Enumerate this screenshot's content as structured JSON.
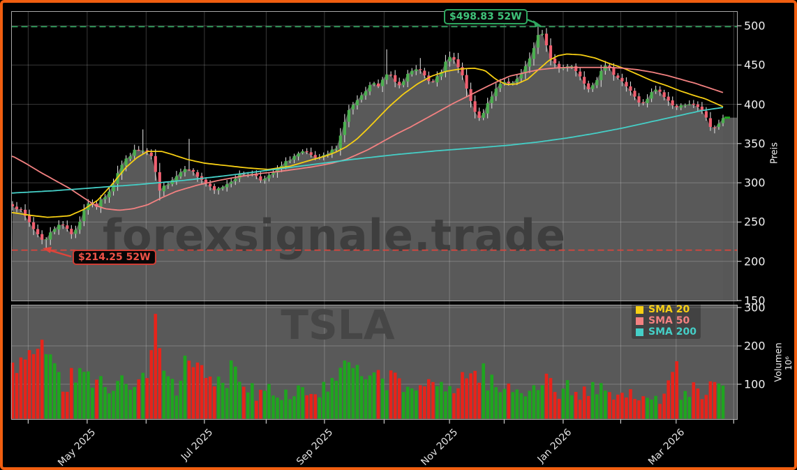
{
  "watermark": {
    "site": "forexsignale.trade",
    "symbol": "TSLA"
  },
  "colors": {
    "frame_border": "#f05e10",
    "panel_gray": "#595959",
    "fill_tail": "#666666",
    "grid": "rgba(255,255,255,0.22)",
    "spine": "#a8a8a8",
    "axis_text": "#f0f0f0",
    "candle_up": "#4caf50",
    "candle_down": "#ef6070",
    "wick": "#d8d8d8",
    "vol_up": "#1fa51f",
    "vol_down": "#e8231a",
    "sma20": "#f7cf13",
    "sma50": "#f38181",
    "sma200": "#45cfc7",
    "high_line": "#2ea85f",
    "high_text": "#3fc47a",
    "low_line": "#e0443a",
    "low_text": "#ef5348",
    "watermark_text": "#3e3e3e",
    "watermark_symbol": "#464646"
  },
  "legend": [
    {
      "label": "SMA 20",
      "color": "#f7cf13"
    },
    {
      "label": "SMA 50",
      "color": "#f38181"
    },
    {
      "label": "SMA 200",
      "color": "#45cfc7"
    }
  ],
  "annotations": {
    "high": {
      "text": "$498.83 52W",
      "price": 498.83
    },
    "low": {
      "text": "$214.25 52W",
      "price": 214.25
    }
  },
  "axes": {
    "price": {
      "label": "Preis",
      "ticks": [
        150,
        200,
        250,
        300,
        350,
        400,
        450,
        500
      ]
    },
    "volume": {
      "label": "Volumen",
      "multiplier": "10⁶",
      "ticks": [
        100,
        200,
        300
      ]
    },
    "x": {
      "major": [
        {
          "label": "May 2025",
          "f": 0.105
        },
        {
          "label": "Jul 2025",
          "f": 0.27
        },
        {
          "label": "Sep 2025",
          "f": 0.439
        },
        {
          "label": "Nov 2025",
          "f": 0.615
        },
        {
          "label": "Jan 2026",
          "f": 0.775
        },
        {
          "label": "Mar 2026",
          "f": 0.934
        }
      ],
      "minor_f": [
        0.022,
        0.105,
        0.188,
        0.27,
        0.357,
        0.439,
        0.523,
        0.615,
        0.692,
        0.775,
        0.856,
        0.934,
        1.015
      ]
    }
  },
  "chart_data": {
    "type": "candlestick+volume",
    "symbol": "TSLA",
    "price_unit": "USD",
    "volume_unit": "millions",
    "high_52w": 498.83,
    "low_52w": 214.25,
    "last_price": 383,
    "candle_count": 170,
    "price_path": [
      [
        0,
        272
      ],
      [
        0.01,
        266
      ],
      [
        0.022,
        252
      ],
      [
        0.032,
        238
      ],
      [
        0.045,
        225
      ],
      [
        0.055,
        238
      ],
      [
        0.065,
        248
      ],
      [
        0.075,
        243
      ],
      [
        0.085,
        234
      ],
      [
        0.095,
        252
      ],
      [
        0.105,
        275
      ],
      [
        0.118,
        270
      ],
      [
        0.13,
        283
      ],
      [
        0.14,
        295
      ],
      [
        0.15,
        318
      ],
      [
        0.16,
        330
      ],
      [
        0.17,
        340
      ],
      [
        0.18,
        342
      ],
      [
        0.19,
        338
      ],
      [
        0.197,
        330
      ],
      [
        0.202,
        310
      ],
      [
        0.207,
        288
      ],
      [
        0.215,
        297
      ],
      [
        0.225,
        305
      ],
      [
        0.235,
        312
      ],
      [
        0.245,
        322
      ],
      [
        0.252,
        315
      ],
      [
        0.262,
        307
      ],
      [
        0.272,
        300
      ],
      [
        0.282,
        289
      ],
      [
        0.292,
        293
      ],
      [
        0.302,
        299
      ],
      [
        0.312,
        306
      ],
      [
        0.322,
        311
      ],
      [
        0.332,
        312
      ],
      [
        0.342,
        310
      ],
      [
        0.352,
        303
      ],
      [
        0.36,
        307
      ],
      [
        0.37,
        315
      ],
      [
        0.38,
        322
      ],
      [
        0.39,
        330
      ],
      [
        0.4,
        336
      ],
      [
        0.41,
        339
      ],
      [
        0.42,
        334
      ],
      [
        0.43,
        330
      ],
      [
        0.44,
        334
      ],
      [
        0.45,
        341
      ],
      [
        0.458,
        348
      ],
      [
        0.465,
        372
      ],
      [
        0.472,
        390
      ],
      [
        0.48,
        400
      ],
      [
        0.49,
        408
      ],
      [
        0.5,
        420
      ],
      [
        0.508,
        428
      ],
      [
        0.515,
        422
      ],
      [
        0.522,
        432
      ],
      [
        0.53,
        442
      ],
      [
        0.538,
        430
      ],
      [
        0.545,
        426
      ],
      [
        0.553,
        434
      ],
      [
        0.56,
        440
      ],
      [
        0.568,
        444
      ],
      [
        0.575,
        446
      ],
      [
        0.582,
        432
      ],
      [
        0.59,
        426
      ],
      [
        0.6,
        436
      ],
      [
        0.608,
        450
      ],
      [
        0.615,
        460
      ],
      [
        0.622,
        455
      ],
      [
        0.63,
        442
      ],
      [
        0.638,
        425
      ],
      [
        0.645,
        402
      ],
      [
        0.652,
        388
      ],
      [
        0.658,
        381
      ],
      [
        0.665,
        395
      ],
      [
        0.672,
        408
      ],
      [
        0.68,
        418
      ],
      [
        0.688,
        426
      ],
      [
        0.695,
        428
      ],
      [
        0.703,
        424
      ],
      [
        0.71,
        432
      ],
      [
        0.718,
        440
      ],
      [
        0.725,
        452
      ],
      [
        0.732,
        468
      ],
      [
        0.738,
        485
      ],
      [
        0.742,
        492
      ],
      [
        0.747,
        487
      ],
      [
        0.752,
        472
      ],
      [
        0.758,
        458
      ],
      [
        0.765,
        450
      ],
      [
        0.772,
        444
      ],
      [
        0.778,
        448
      ],
      [
        0.785,
        452
      ],
      [
        0.79,
        446
      ],
      [
        0.797,
        438
      ],
      [
        0.803,
        430
      ],
      [
        0.81,
        421
      ],
      [
        0.816,
        425
      ],
      [
        0.822,
        432
      ],
      [
        0.828,
        444
      ],
      [
        0.834,
        448
      ],
      [
        0.84,
        444
      ],
      [
        0.848,
        438
      ],
      [
        0.855,
        433
      ],
      [
        0.862,
        425
      ],
      [
        0.87,
        416
      ],
      [
        0.878,
        408
      ],
      [
        0.885,
        398
      ],
      [
        0.892,
        404
      ],
      [
        0.9,
        415
      ],
      [
        0.906,
        419
      ],
      [
        0.912,
        414
      ],
      [
        0.92,
        407
      ],
      [
        0.928,
        400
      ],
      [
        0.935,
        396
      ],
      [
        0.942,
        398
      ],
      [
        0.95,
        403
      ],
      [
        0.956,
        399
      ],
      [
        0.963,
        396
      ],
      [
        0.97,
        391
      ],
      [
        0.976,
        384
      ],
      [
        0.982,
        372
      ],
      [
        0.987,
        367
      ],
      [
        0.992,
        374
      ],
      [
        1,
        383
      ]
    ],
    "wick_overrides": [
      {
        "f": 0.047,
        "low": 214.25
      },
      {
        "f": 0.185,
        "high": 368
      },
      {
        "f": 0.247,
        "high": 356
      },
      {
        "f": 0.527,
        "high": 470
      },
      {
        "f": 0.575,
        "high": 459
      },
      {
        "f": 0.74,
        "high": 498.83
      },
      {
        "f": 0.986,
        "low": 363
      }
    ],
    "volume_path": [
      [
        0,
        155
      ],
      [
        0.008,
        120
      ],
      [
        0.016,
        148
      ],
      [
        0.024,
        200
      ],
      [
        0.032,
        160
      ],
      [
        0.04,
        215
      ],
      [
        0.048,
        185
      ],
      [
        0.056,
        175
      ],
      [
        0.064,
        135
      ],
      [
        0.075,
        95
      ],
      [
        0.085,
        125
      ],
      [
        0.095,
        148
      ],
      [
        0.105,
        112
      ],
      [
        0.115,
        88
      ],
      [
        0.13,
        102
      ],
      [
        0.145,
        118
      ],
      [
        0.16,
        82
      ],
      [
        0.175,
        95
      ],
      [
        0.19,
        125
      ],
      [
        0.202,
        290
      ],
      [
        0.21,
        150
      ],
      [
        0.22,
        118
      ],
      [
        0.232,
        98
      ],
      [
        0.245,
        182
      ],
      [
        0.255,
        120
      ],
      [
        0.268,
        138
      ],
      [
        0.28,
        92
      ],
      [
        0.3,
        115
      ],
      [
        0.315,
        155
      ],
      [
        0.33,
        95
      ],
      [
        0.345,
        78
      ],
      [
        0.36,
        98
      ],
      [
        0.375,
        85
      ],
      [
        0.39,
        70
      ],
      [
        0.405,
        92
      ],
      [
        0.42,
        76
      ],
      [
        0.44,
        86
      ],
      [
        0.455,
        108
      ],
      [
        0.465,
        158
      ],
      [
        0.478,
        148
      ],
      [
        0.49,
        118
      ],
      [
        0.502,
        92
      ],
      [
        0.515,
        128
      ],
      [
        0.53,
        118
      ],
      [
        0.545,
        96
      ],
      [
        0.56,
        86
      ],
      [
        0.575,
        108
      ],
      [
        0.59,
        82
      ],
      [
        0.6,
        95
      ],
      [
        0.612,
        86
      ],
      [
        0.625,
        108
      ],
      [
        0.64,
        128
      ],
      [
        0.652,
        118
      ],
      [
        0.662,
        138
      ],
      [
        0.675,
        96
      ],
      [
        0.69,
        82
      ],
      [
        0.7,
        90
      ],
      [
        0.712,
        76
      ],
      [
        0.725,
        86
      ],
      [
        0.738,
        108
      ],
      [
        0.75,
        125
      ],
      [
        0.762,
        90
      ],
      [
        0.775,
        76
      ],
      [
        0.785,
        95
      ],
      [
        0.795,
        72
      ],
      [
        0.805,
        82
      ],
      [
        0.815,
        90
      ],
      [
        0.825,
        76
      ],
      [
        0.835,
        86
      ],
      [
        0.845,
        66
      ],
      [
        0.855,
        76
      ],
      [
        0.865,
        62
      ],
      [
        0.875,
        80
      ],
      [
        0.885,
        72
      ],
      [
        0.895,
        85
      ],
      [
        0.905,
        75
      ],
      [
        0.915,
        66
      ],
      [
        0.925,
        92
      ],
      [
        0.932,
        148
      ],
      [
        0.94,
        82
      ],
      [
        0.95,
        72
      ],
      [
        0.958,
        86
      ],
      [
        0.966,
        76
      ],
      [
        0.975,
        92
      ],
      [
        0.983,
        82
      ],
      [
        0.99,
        95
      ],
      [
        1,
        82
      ]
    ],
    "sma": [
      {
        "name": "SMA 20",
        "window": 20,
        "color": "#f7cf13",
        "points": [
          [
            0,
            262
          ],
          [
            0.03,
            258
          ],
          [
            0.05,
            256
          ],
          [
            0.08,
            258
          ],
          [
            0.1,
            266
          ],
          [
            0.12,
            278
          ],
          [
            0.14,
            298
          ],
          [
            0.16,
            320
          ],
          [
            0.175,
            332
          ],
          [
            0.19,
            340
          ],
          [
            0.21,
            340
          ],
          [
            0.225,
            336
          ],
          [
            0.245,
            330
          ],
          [
            0.27,
            325
          ],
          [
            0.3,
            322
          ],
          [
            0.33,
            319
          ],
          [
            0.36,
            317
          ],
          [
            0.39,
            321
          ],
          [
            0.42,
            329
          ],
          [
            0.44,
            334
          ],
          [
            0.455,
            339
          ],
          [
            0.47,
            346
          ],
          [
            0.485,
            356
          ],
          [
            0.5,
            369
          ],
          [
            0.515,
            383
          ],
          [
            0.53,
            397
          ],
          [
            0.55,
            413
          ],
          [
            0.57,
            426
          ],
          [
            0.59,
            436
          ],
          [
            0.61,
            442
          ],
          [
            0.63,
            445
          ],
          [
            0.65,
            446
          ],
          [
            0.665,
            443
          ],
          [
            0.68,
            432
          ],
          [
            0.695,
            425
          ],
          [
            0.71,
            426
          ],
          [
            0.725,
            432
          ],
          [
            0.74,
            444
          ],
          [
            0.755,
            456
          ],
          [
            0.768,
            462
          ],
          [
            0.78,
            464
          ],
          [
            0.8,
            463
          ],
          [
            0.82,
            459
          ],
          [
            0.84,
            452
          ],
          [
            0.86,
            446
          ],
          [
            0.88,
            438
          ],
          [
            0.9,
            430
          ],
          [
            0.92,
            424
          ],
          [
            0.94,
            417
          ],
          [
            0.96,
            411
          ],
          [
            0.975,
            407
          ],
          [
            0.99,
            401
          ],
          [
            1,
            397
          ]
        ]
      },
      {
        "name": "SMA 50",
        "window": 50,
        "color": "#f38181",
        "points": [
          [
            0,
            334
          ],
          [
            0.02,
            324
          ],
          [
            0.04,
            313
          ],
          [
            0.06,
            303
          ],
          [
            0.08,
            293
          ],
          [
            0.1,
            281
          ],
          [
            0.115,
            272
          ],
          [
            0.13,
            267
          ],
          [
            0.15,
            265
          ],
          [
            0.17,
            267
          ],
          [
            0.19,
            272
          ],
          [
            0.21,
            281
          ],
          [
            0.23,
            289
          ],
          [
            0.26,
            297
          ],
          [
            0.29,
            303
          ],
          [
            0.32,
            308
          ],
          [
            0.35,
            312
          ],
          [
            0.38,
            315
          ],
          [
            0.42,
            320
          ],
          [
            0.45,
            325
          ],
          [
            0.47,
            330
          ],
          [
            0.5,
            342
          ],
          [
            0.52,
            352
          ],
          [
            0.54,
            362
          ],
          [
            0.56,
            371
          ],
          [
            0.58,
            381
          ],
          [
            0.6,
            391
          ],
          [
            0.62,
            401
          ],
          [
            0.64,
            410
          ],
          [
            0.66,
            419
          ],
          [
            0.68,
            428
          ],
          [
            0.7,
            436
          ],
          [
            0.72,
            440
          ],
          [
            0.74,
            444
          ],
          [
            0.76,
            446
          ],
          [
            0.78,
            447
          ],
          [
            0.81,
            447
          ],
          [
            0.84,
            447
          ],
          [
            0.86,
            446
          ],
          [
            0.88,
            444
          ],
          [
            0.9,
            441
          ],
          [
            0.92,
            437
          ],
          [
            0.94,
            432
          ],
          [
            0.96,
            427
          ],
          [
            0.98,
            421
          ],
          [
            1,
            415
          ]
        ]
      },
      {
        "name": "SMA 200",
        "window": 200,
        "color": "#45cfc7",
        "points": [
          [
            0,
            287
          ],
          [
            0.06,
            290
          ],
          [
            0.12,
            294
          ],
          [
            0.18,
            298
          ],
          [
            0.24,
            303
          ],
          [
            0.3,
            309
          ],
          [
            0.36,
            316
          ],
          [
            0.42,
            323
          ],
          [
            0.48,
            330
          ],
          [
            0.54,
            336
          ],
          [
            0.6,
            341
          ],
          [
            0.66,
            345
          ],
          [
            0.7,
            348
          ],
          [
            0.74,
            352
          ],
          [
            0.78,
            357
          ],
          [
            0.82,
            363
          ],
          [
            0.86,
            370
          ],
          [
            0.9,
            378
          ],
          [
            0.94,
            386
          ],
          [
            0.97,
            392
          ],
          [
            1,
            396
          ]
        ]
      }
    ]
  }
}
